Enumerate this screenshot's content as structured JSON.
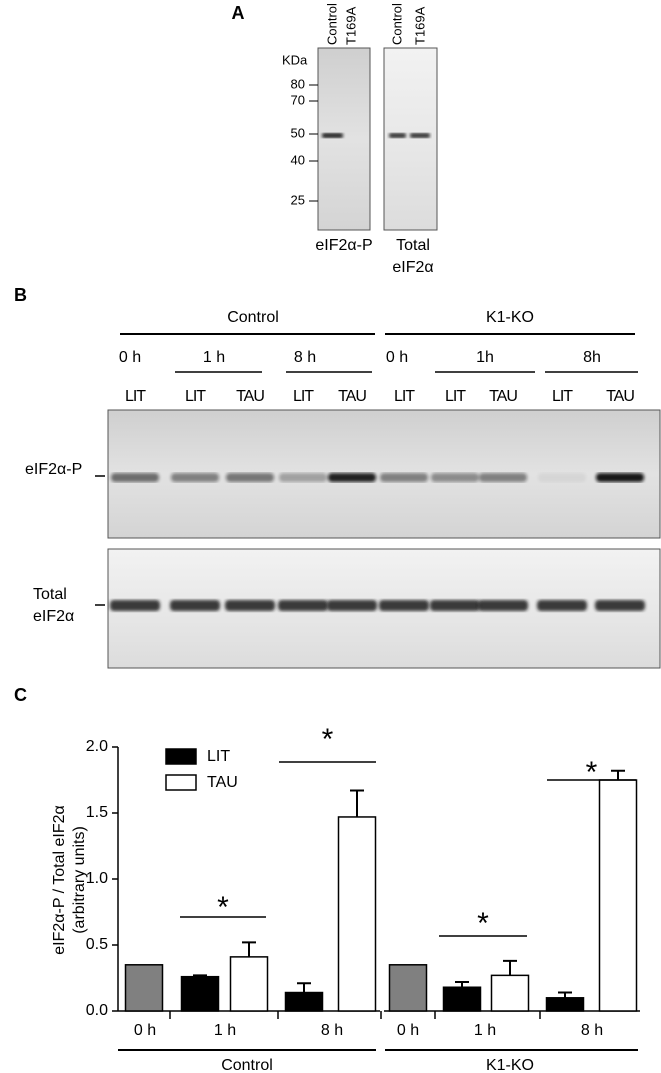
{
  "panel_a": {
    "label": "A",
    "kda_label": "KDa",
    "markers": [
      "80",
      "70",
      "50",
      "40",
      "25"
    ],
    "lanes": [
      "Control",
      "T169A"
    ],
    "blot_labels": [
      "eIF2α-P",
      "Total",
      "eIF2α"
    ]
  },
  "panel_b": {
    "label": "B",
    "groups": [
      "Control",
      "K1-KO"
    ],
    "times": [
      "0 h",
      "1 h",
      "8 h",
      "0 h",
      "1h",
      "8h"
    ],
    "lanes": [
      "LIT",
      "LIT",
      "TAU",
      "LIT",
      "TAU",
      "LIT",
      "LIT",
      "TAU",
      "LIT",
      "TAU"
    ],
    "row_labels": [
      "eIF2α-P",
      "Total",
      "eIF2α"
    ]
  },
  "panel_c": {
    "label": "C"
  },
  "chart_data": {
    "type": "bar",
    "y_label": [
      "eIF2α-P / Total eIF2α",
      "(arbitrary units)"
    ],
    "categories": [
      "0 h",
      "1 h",
      "8 h",
      "0 h",
      "1 h",
      "8 h"
    ],
    "groups": [
      "Control",
      "K1-KO"
    ],
    "series": [
      {
        "color": "#808080",
        "values": [
          0.35,
          null,
          null,
          0.35,
          null,
          null
        ]
      },
      {
        "name": "LIT",
        "color": "#000000",
        "values": [
          null,
          0.26,
          0.14,
          null,
          0.18,
          0.1
        ],
        "errors": [
          null,
          0.01,
          0.07,
          null,
          0.04,
          0.04
        ]
      },
      {
        "name": "TAU",
        "color": "#ffffff",
        "values": [
          null,
          0.41,
          1.47,
          null,
          0.27,
          1.75
        ],
        "errors": [
          null,
          0.11,
          0.2,
          null,
          0.11,
          0.07
        ]
      }
    ],
    "significance": [
      null,
      "*",
      "*",
      null,
      "*",
      "*"
    ],
    "ylim": [
      0,
      2
    ],
    "yticks": [
      {
        "value": 0,
        "label": "0.0"
      },
      0.5,
      {
        "value": 1,
        "label": "1.0"
      },
      1.5,
      {
        "value": 2,
        "label": "2.0"
      }
    ]
  }
}
